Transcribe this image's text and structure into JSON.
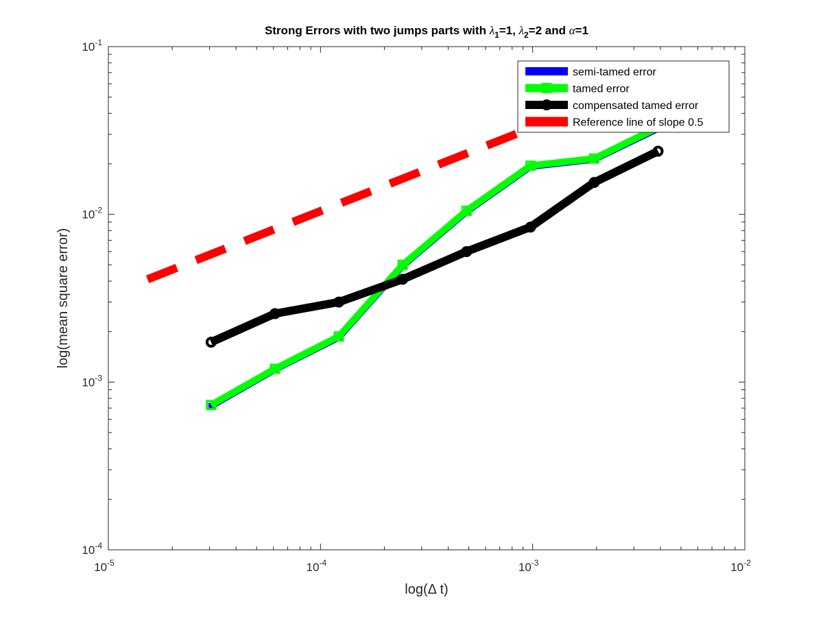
{
  "chart_data": {
    "type": "line",
    "title": {
      "prefix": "Strong Errors with two jumps parts with ",
      "sym1": "λ",
      "sub1": "1",
      "mid1": "=1, ",
      "sym2": "λ",
      "sub2": "2",
      "mid2": "=2 and ",
      "sym3": "α",
      "end": "=1"
    },
    "xlabel": "log(Δ t)",
    "ylabel": "log(mean square error)",
    "x_scale": "log",
    "y_scale": "log",
    "xlim": [
      1e-05,
      0.01
    ],
    "ylim": [
      0.0001,
      0.1
    ],
    "x_ticks": [
      {
        "value": 1e-05,
        "base": "10",
        "exp": "-5"
      },
      {
        "value": 0.0001,
        "base": "10",
        "exp": "-4"
      },
      {
        "value": 0.001,
        "base": "10",
        "exp": "-3"
      },
      {
        "value": 0.01,
        "base": "10",
        "exp": "-2"
      }
    ],
    "y_ticks": [
      {
        "value": 0.0001,
        "base": "10",
        "exp": "-4"
      },
      {
        "value": 0.001,
        "base": "10",
        "exp": "-3"
      },
      {
        "value": 0.01,
        "base": "10",
        "exp": "-2"
      },
      {
        "value": 0.1,
        "base": "10",
        "exp": "-1"
      }
    ],
    "grid": false,
    "legend_position": "top-right",
    "series": [
      {
        "name": "semi-tamed error",
        "color": "#0000ff",
        "style": "solid",
        "marker": "asterisk",
        "x": [
          3.05e-05,
          6.1e-05,
          0.000122,
          0.000244,
          0.000488,
          0.000977,
          0.00195,
          0.0039
        ],
        "y": [
          0.00072,
          0.00119,
          0.00185,
          0.00495,
          0.0104,
          0.0193,
          0.0213,
          0.0325
        ]
      },
      {
        "name": "tamed error",
        "color": "#00ff00",
        "style": "solid",
        "marker": "square",
        "x": [
          3.05e-05,
          6.1e-05,
          0.000122,
          0.000244,
          0.000488,
          0.000977,
          0.00195,
          0.0039
        ],
        "y": [
          0.00073,
          0.0012,
          0.00187,
          0.005,
          0.0105,
          0.0195,
          0.0215,
          0.033
        ]
      },
      {
        "name": "compensated tamed error",
        "color": "#000000",
        "style": "solid",
        "marker": "circle",
        "x": [
          3.05e-05,
          6.1e-05,
          0.000122,
          0.000244,
          0.000488,
          0.000977,
          0.00195,
          0.0039
        ],
        "y": [
          0.00173,
          0.00256,
          0.003,
          0.0041,
          0.006,
          0.0084,
          0.0155,
          0.0238
        ]
      },
      {
        "name": "Reference line of slope 0.5",
        "color": "#ff0000",
        "style": "dashed",
        "marker": "none",
        "x": [
          1.53e-05,
          0.0039
        ],
        "y": [
          0.0041,
          0.065
        ]
      }
    ]
  }
}
